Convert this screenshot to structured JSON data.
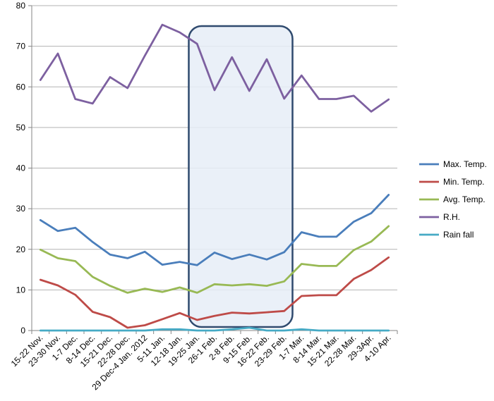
{
  "chart_data": {
    "type": "line",
    "title": "",
    "xlabel": "",
    "ylabel": "",
    "ylim": [
      0,
      80
    ],
    "yticks": [
      0,
      10,
      20,
      30,
      40,
      50,
      60,
      70,
      80
    ],
    "grid": "horizontal",
    "legend": "right",
    "categories": [
      "15-22 Nov.",
      "23-30 Nov.",
      "1-7 Dec.",
      "8-14 Dec.",
      "15-21 Dec.",
      "22-28 Dec.",
      "29 Dec-4 Jan. 2012",
      "5-11 Jan.",
      "12-18 Jan.",
      "19-25 Jan.",
      "26-1 Feb.",
      "2-8 Feb.",
      "9-15 Feb.",
      "16-22 Feb.",
      "23-29 Feb.",
      "1-7 Mar.",
      "8-14 Mar.",
      "15-21 Mar.",
      "22-28 Mar.",
      "29-3Apr.",
      "4-10 Apr."
    ],
    "series": [
      {
        "name": "Max. Temp.",
        "color": "#4a7ebb",
        "values": [
          27.2,
          24.5,
          25.3,
          21.8,
          18.7,
          17.8,
          19.4,
          16.2,
          16.9,
          16.1,
          19.2,
          17.6,
          18.7,
          17.5,
          19.3,
          24.2,
          23.1,
          23.1,
          26.8,
          28.9,
          33.4
        ]
      },
      {
        "name": "Min. Temp.",
        "color": "#be4b48",
        "values": [
          12.5,
          11.1,
          8.8,
          4.6,
          3.3,
          0.7,
          1.3,
          2.8,
          4.3,
          2.6,
          3.6,
          4.4,
          4.2,
          4.5,
          4.8,
          8.5,
          8.7,
          8.7,
          12.7,
          14.9,
          18.0
        ]
      },
      {
        "name": "Avg. Temp.",
        "color": "#98b954",
        "values": [
          19.9,
          17.8,
          17.1,
          13.2,
          11.0,
          9.3,
          10.3,
          9.5,
          10.6,
          9.3,
          11.4,
          11.1,
          11.4,
          11.0,
          12.1,
          16.4,
          15.9,
          15.9,
          19.8,
          21.9,
          25.7
        ]
      },
      {
        "name": "R.H.",
        "color": "#7d60a0",
        "values": [
          61.7,
          68.2,
          57.0,
          55.9,
          62.4,
          59.7,
          67.7,
          75.3,
          73.4,
          70.6,
          59.2,
          67.3,
          59.0,
          66.8,
          57.1,
          62.8,
          57.0,
          57.0,
          57.8,
          53.9,
          56.9
        ]
      },
      {
        "name": "Rain fall",
        "color": "#46aac5",
        "values": [
          0,
          0,
          0,
          0,
          0,
          0,
          0,
          0.3,
          0.3,
          0,
          0,
          0.3,
          0.7,
          0,
          0,
          0.3,
          0,
          0,
          0,
          0,
          0
        ]
      }
    ],
    "highlight": {
      "from_category": "19-25 Jan.",
      "to_category": "23-29 Feb.",
      "fill": "#e6edf7",
      "stroke": "#2f4a6e"
    }
  }
}
